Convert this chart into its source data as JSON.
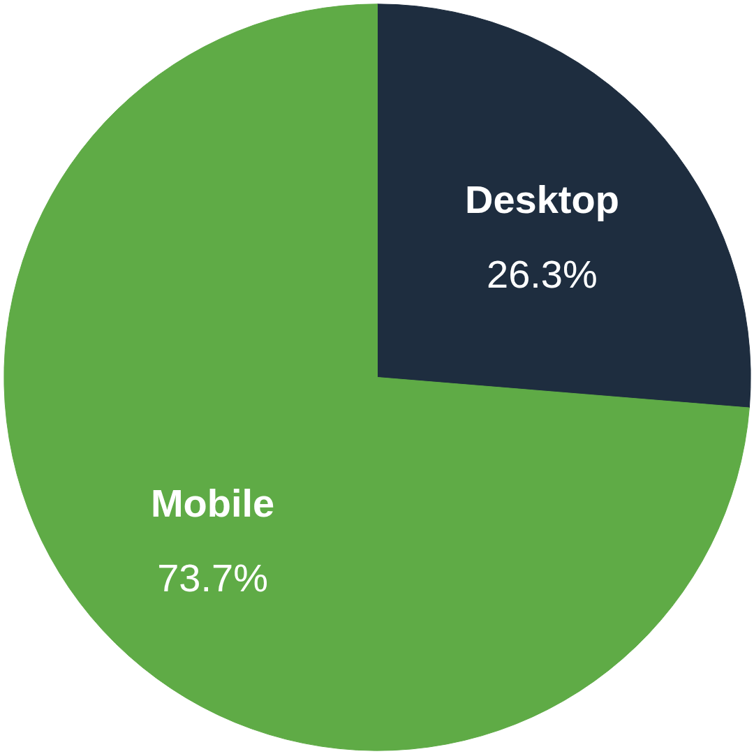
{
  "chart_data": {
    "type": "pie",
    "categories": [
      "Desktop",
      "Mobile"
    ],
    "values": [
      26.3,
      73.7
    ],
    "colors": [
      "#1e2d3f",
      "#5fab46"
    ],
    "value_labels": [
      "26.3%",
      "73.7%"
    ]
  }
}
